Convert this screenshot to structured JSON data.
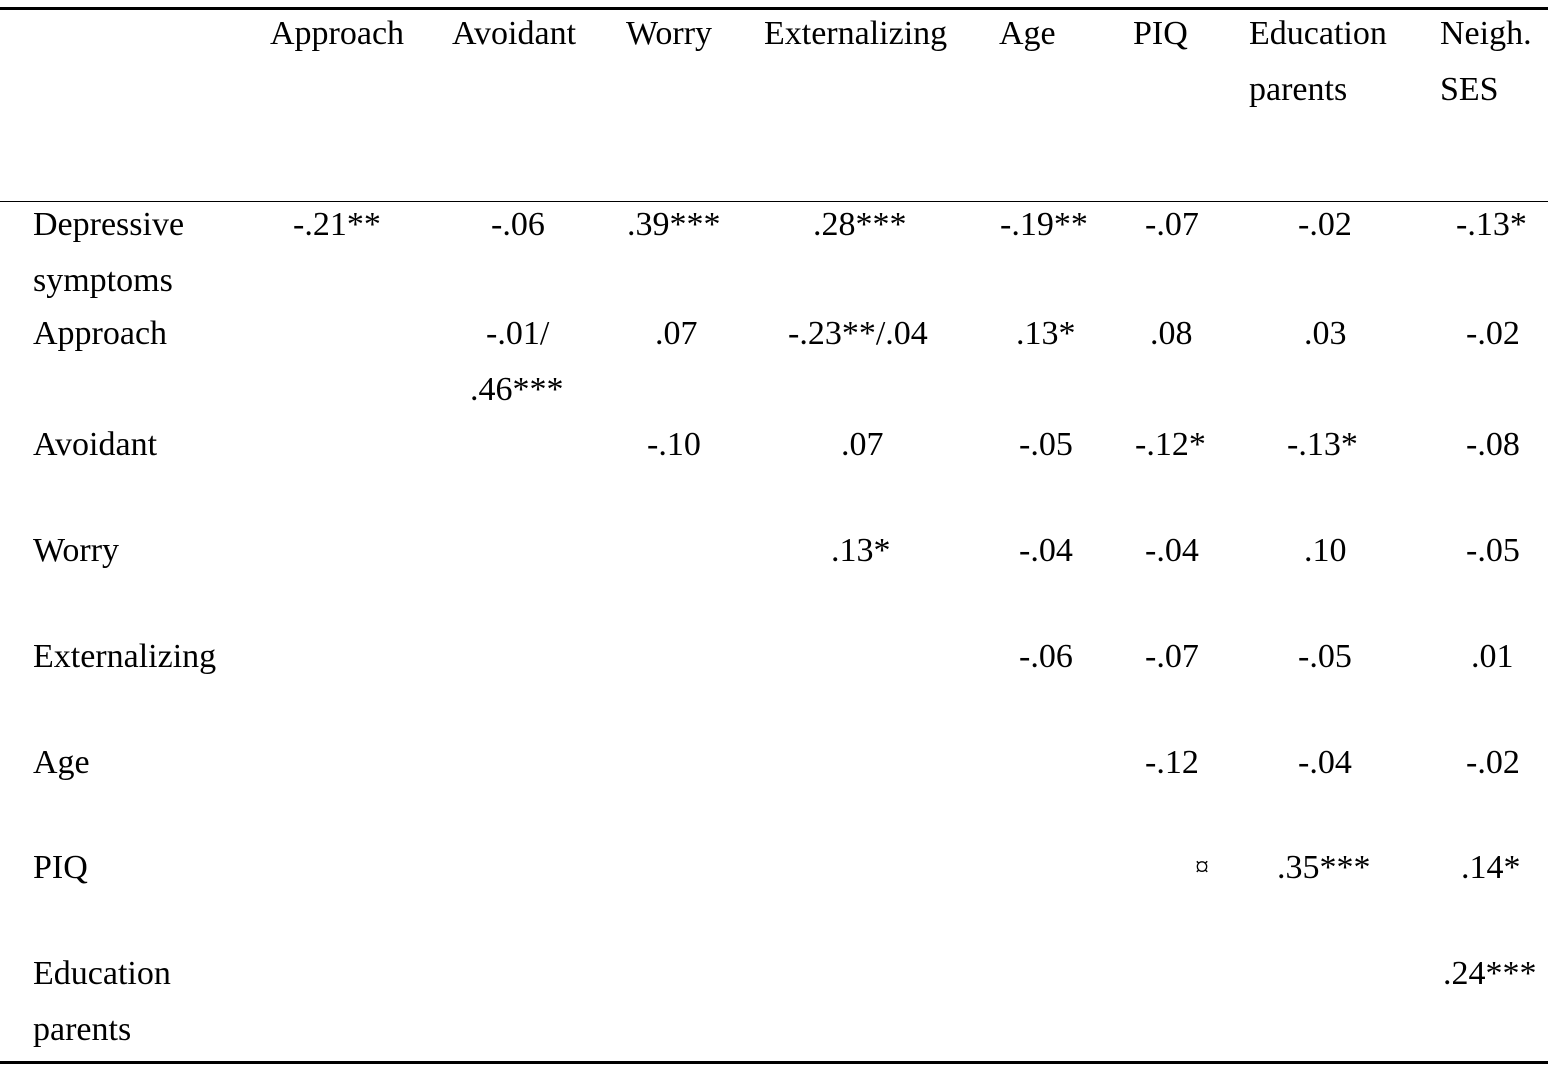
{
  "table": {
    "headers": [
      "Approach",
      "Avoidant",
      "Worry",
      "Externalizing",
      "Age",
      "PIQ",
      "Education",
      "parents",
      "Neigh.",
      "SES"
    ],
    "rows": [
      {
        "label": [
          "Depressive",
          "symptoms"
        ],
        "values": [
          "-.21**",
          "-.06",
          ".39***",
          ".28***",
          "-.19**",
          "-.07",
          "-.02",
          "-.13*"
        ]
      },
      {
        "label": [
          "Approach"
        ],
        "values": [
          "-.01/",
          ".46***",
          ".07",
          "-.23**/.04",
          ".13*",
          ".08",
          ".03",
          "-.02"
        ]
      },
      {
        "label": [
          "Avoidant"
        ],
        "values": [
          "-.10",
          ".07",
          "-.05",
          "-.12*",
          "-.13*",
          "-.08"
        ]
      },
      {
        "label": [
          "Worry"
        ],
        "values": [
          ".13*",
          "-.04",
          "-.04",
          ".10",
          "-.05"
        ]
      },
      {
        "label": [
          "Externalizing"
        ],
        "values": [
          "-.06",
          "-.07",
          "-.05",
          ".01"
        ]
      },
      {
        "label": [
          "Age"
        ],
        "values": [
          "-.12",
          "-.04",
          "-.02"
        ]
      },
      {
        "label": [
          "PIQ"
        ],
        "values": [
          "¤",
          ".35***",
          ".14*"
        ]
      },
      {
        "label": [
          "Education",
          "parents"
        ],
        "values": [
          ".24***"
        ]
      }
    ]
  }
}
